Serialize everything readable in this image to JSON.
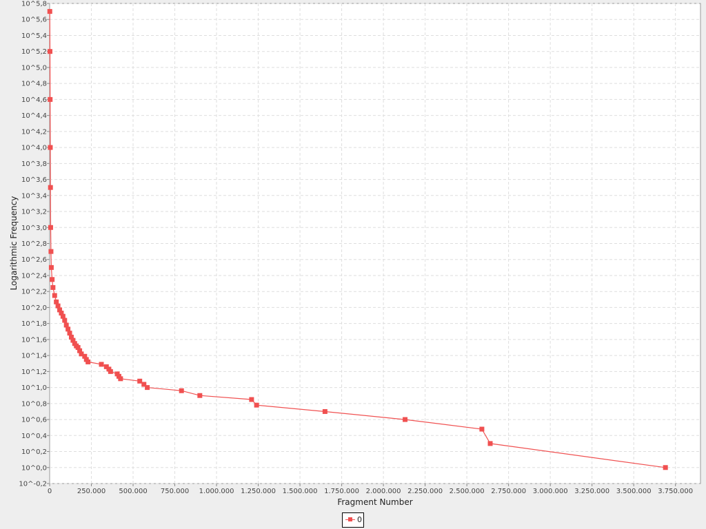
{
  "chart_data": {
    "type": "line",
    "xlabel": "Fragment Number",
    "ylabel": "Logarithmic Frequency",
    "xlim": [
      0,
      3900000
    ],
    "ylim": [
      -0.2,
      5.8
    ],
    "y_scale": "log10",
    "grid": true,
    "legend_position": "bottom-center",
    "x_ticks": [
      "0",
      "250.000",
      "500.000",
      "750.000",
      "1.000.000",
      "1.250.000",
      "1.500.000",
      "1.750.000",
      "2.000.000",
      "2.250.000",
      "2.500.000",
      "2.750.000",
      "3.000.000",
      "3.250.000",
      "3.500.000",
      "3.750.000"
    ],
    "y_ticks": [
      "10^-0,2",
      "10^0,0",
      "10^0,2",
      "10^0,4",
      "10^0,6",
      "10^0,8",
      "10^1,0",
      "10^1,2",
      "10^1,4",
      "10^1,6",
      "10^1,8",
      "10^2,0",
      "10^2,2",
      "10^2,4",
      "10^2,6",
      "10^2,8",
      "10^3,0",
      "10^3,2",
      "10^3,4",
      "10^3,6",
      "10^3,8",
      "10^4,0",
      "10^4,2",
      "10^4,4",
      "10^4,6",
      "10^4,8",
      "10^5,0",
      "10^5,2",
      "10^5,4",
      "10^5,6",
      "10^5,8"
    ],
    "series": [
      {
        "name": "0",
        "color": "#f05050",
        "points": [
          [
            1000,
            5.7
          ],
          [
            2000,
            5.2
          ],
          [
            3000,
            4.6
          ],
          [
            4000,
            4.0
          ],
          [
            5000,
            3.5
          ],
          [
            6000,
            3.0
          ],
          [
            8000,
            2.7
          ],
          [
            10000,
            2.5
          ],
          [
            15000,
            2.35
          ],
          [
            20000,
            2.25
          ],
          [
            30000,
            2.15
          ],
          [
            40000,
            2.07
          ],
          [
            50000,
            2.02
          ],
          [
            60000,
            1.97
          ],
          [
            70000,
            1.93
          ],
          [
            80000,
            1.89
          ],
          [
            90000,
            1.84
          ],
          [
            100000,
            1.78
          ],
          [
            110000,
            1.73
          ],
          [
            120000,
            1.68
          ],
          [
            130000,
            1.63
          ],
          [
            140000,
            1.59
          ],
          [
            150000,
            1.55
          ],
          [
            160000,
            1.52
          ],
          [
            170000,
            1.5
          ],
          [
            180000,
            1.46
          ],
          [
            190000,
            1.42
          ],
          [
            210000,
            1.39
          ],
          [
            220000,
            1.35
          ],
          [
            230000,
            1.32
          ],
          [
            310000,
            1.29
          ],
          [
            340000,
            1.26
          ],
          [
            355000,
            1.23
          ],
          [
            365000,
            1.2
          ],
          [
            405000,
            1.17
          ],
          [
            415000,
            1.14
          ],
          [
            425000,
            1.11
          ],
          [
            540000,
            1.08
          ],
          [
            565000,
            1.04
          ],
          [
            585000,
            1.0
          ],
          [
            790000,
            0.96
          ],
          [
            900000,
            0.9
          ],
          [
            1210000,
            0.85
          ],
          [
            1240000,
            0.78
          ],
          [
            1650000,
            0.7
          ],
          [
            2130000,
            0.6
          ],
          [
            2590000,
            0.48
          ],
          [
            2640000,
            0.3
          ],
          [
            3690000,
            0.0
          ]
        ]
      }
    ]
  }
}
